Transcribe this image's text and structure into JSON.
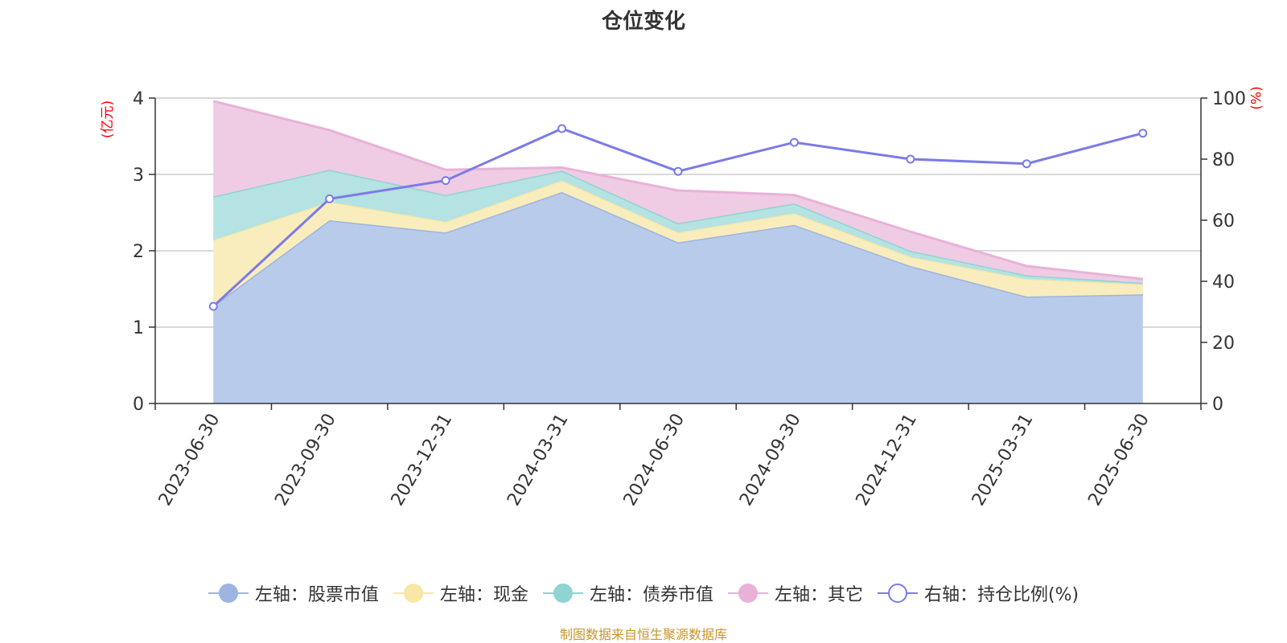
{
  "title": "仓位变化",
  "units": {
    "left": "(亿元)",
    "right": "(%)"
  },
  "source": "制图数据来自恒生聚源数据库",
  "legend": [
    {
      "label": "左轴：股票市值",
      "color": "#9db5e0",
      "hollow": false
    },
    {
      "label": "左轴：现金",
      "color": "#f8e7a6",
      "hollow": false
    },
    {
      "label": "左轴：债券市值",
      "color": "#8fd3d3",
      "hollow": false
    },
    {
      "label": "左轴：其它",
      "color": "#e8b2d8",
      "hollow": false
    },
    {
      "label": "右轴：持仓比例(%)",
      "color": "#7b7be8",
      "hollow": true
    }
  ],
  "chart_data": {
    "type": "area",
    "stacked": true,
    "categories": [
      "2023-06-30",
      "2023-09-30",
      "2023-12-31",
      "2024-03-31",
      "2024-06-30",
      "2024-09-30",
      "2024-12-31",
      "2025-03-31",
      "2025-06-30"
    ],
    "series": [
      {
        "name": "左轴：股票市值",
        "axis": "left",
        "color": "#9db5e0",
        "fill": "#b8cbea",
        "values": [
          1.28,
          2.4,
          2.24,
          2.77,
          2.11,
          2.34,
          1.8,
          1.4,
          1.43
        ]
      },
      {
        "name": "左轴：现金",
        "axis": "left",
        "color": "#f8e7a6",
        "fill": "#faedbd",
        "values": [
          0.86,
          0.24,
          0.14,
          0.15,
          0.13,
          0.15,
          0.12,
          0.23,
          0.13
        ]
      },
      {
        "name": "左轴：债券市值",
        "axis": "left",
        "color": "#8fd3d3",
        "fill": "#b5e2e2",
        "values": [
          0.57,
          0.42,
          0.35,
          0.13,
          0.12,
          0.13,
          0.08,
          0.05,
          0.02
        ]
      },
      {
        "name": "左轴：其它",
        "axis": "left",
        "color": "#e8b2d8",
        "fill": "#efcce4",
        "values": [
          1.25,
          0.52,
          0.33,
          0.04,
          0.43,
          0.11,
          0.25,
          0.12,
          0.05
        ]
      },
      {
        "name": "右轴：持仓比例(%)",
        "axis": "right",
        "type": "line",
        "color": "#7b7be8",
        "values": [
          31.8,
          67.0,
          73.0,
          90.0,
          76.0,
          85.5,
          80.0,
          78.5,
          88.5
        ]
      }
    ],
    "left_axis": {
      "ylim": [
        0,
        4
      ],
      "ticks": [
        "0",
        "1",
        "2",
        "3",
        "4"
      ]
    },
    "right_axis": {
      "ylim": [
        0,
        100
      ],
      "ticks": [
        "0",
        "20",
        "40",
        "60",
        "80",
        "100"
      ]
    },
    "grid": true,
    "legend_position": "bottom"
  }
}
